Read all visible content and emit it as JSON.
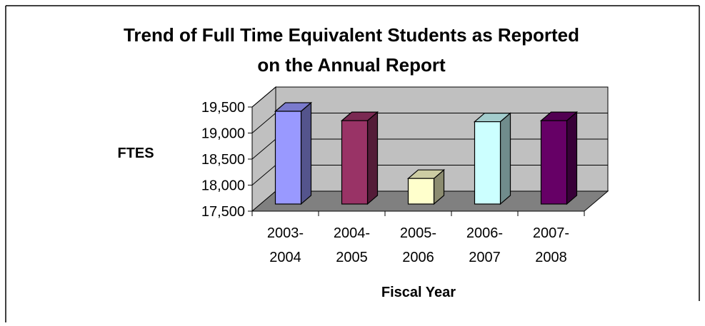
{
  "chart_data": {
    "type": "bar",
    "title_lines": [
      "Trend of Full Time Equivalent Students as Reported",
      "on the Annual Report"
    ],
    "xlabel": "Fiscal Year",
    "ylabel": "FTES",
    "categories": [
      {
        "line1": "2003-",
        "line2": "2004"
      },
      {
        "line1": "2004-",
        "line2": "2005"
      },
      {
        "line1": "2005-",
        "line2": "2006"
      },
      {
        "line1": "2006-",
        "line2": "2007"
      },
      {
        "line1": "2007-",
        "line2": "2008"
      }
    ],
    "values": [
      19500,
      19320,
      18210,
      19300,
      19320
    ],
    "ylim": [
      17500,
      19500
    ],
    "yticks": [
      17500,
      18000,
      18500,
      19000,
      19500
    ],
    "ytick_labels": [
      "17,500",
      "18,000",
      "18,500",
      "19,000",
      "19,500"
    ],
    "grid": true,
    "legend": "none",
    "colors": {
      "bars": [
        "#9999ff",
        "#993366",
        "#ffffcc",
        "#ccffff",
        "#660066"
      ],
      "wall": "#c0c0c0",
      "floor": "#808080"
    }
  }
}
